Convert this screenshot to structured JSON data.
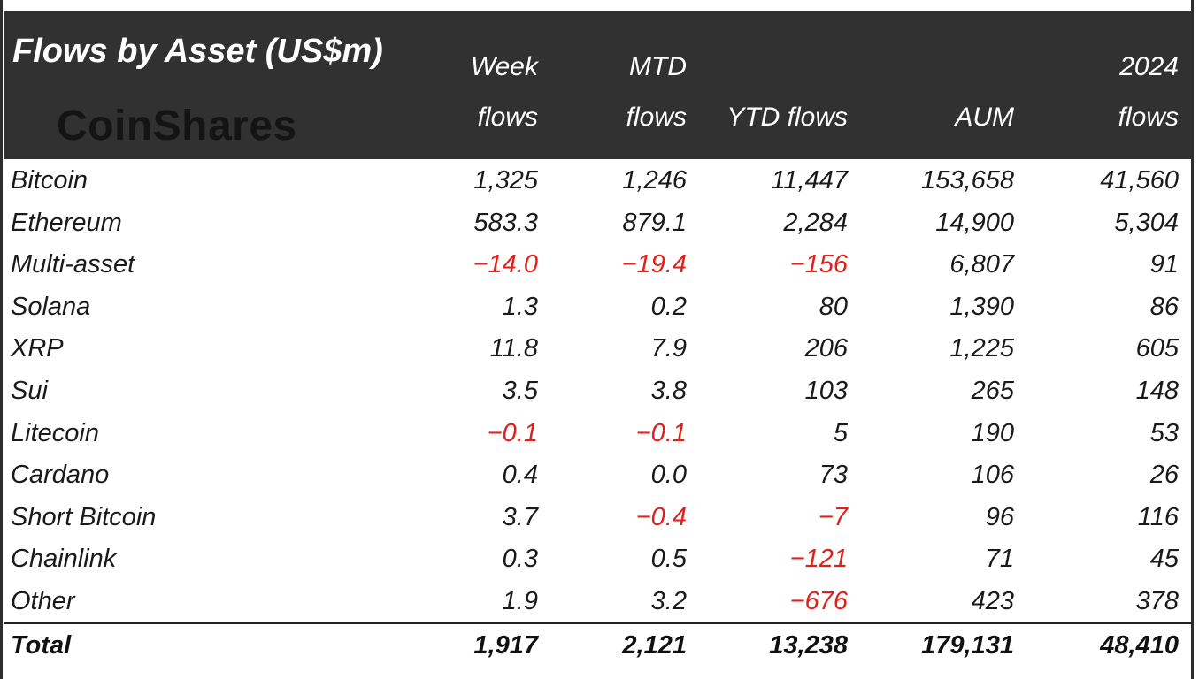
{
  "title": "Flows by Asset (US$m)",
  "logo": "CoinShares",
  "chart_data": {
    "type": "table",
    "title": "Flows by Asset (US$m)",
    "columns": [
      {
        "key": "week",
        "line1": "Week",
        "line2": "flows"
      },
      {
        "key": "mtd",
        "line1": "MTD",
        "line2": "flows"
      },
      {
        "key": "ytd",
        "line1": "",
        "line2": "YTD flows"
      },
      {
        "key": "aum",
        "line1": "",
        "line2": "AUM"
      },
      {
        "key": "y2024",
        "line1": "2024",
        "line2": "flows"
      }
    ],
    "rows": [
      {
        "asset": "Bitcoin",
        "week": "1,325",
        "mtd": "1,246",
        "ytd": "11,447",
        "aum": "153,658",
        "y2024": "41,560"
      },
      {
        "asset": "Ethereum",
        "week": "583.3",
        "mtd": "879.1",
        "ytd": "2,284",
        "aum": "14,900",
        "y2024": "5,304"
      },
      {
        "asset": "Multi-asset",
        "week": "-14.0",
        "mtd": "-19.4",
        "ytd": "-156",
        "aum": "6,807",
        "y2024": "91"
      },
      {
        "asset": "Solana",
        "week": "1.3",
        "mtd": "0.2",
        "ytd": "80",
        "aum": "1,390",
        "y2024": "86"
      },
      {
        "asset": "XRP",
        "week": "11.8",
        "mtd": "7.9",
        "ytd": "206",
        "aum": "1,225",
        "y2024": "605"
      },
      {
        "asset": "Sui",
        "week": "3.5",
        "mtd": "3.8",
        "ytd": "103",
        "aum": "265",
        "y2024": "148"
      },
      {
        "asset": "Litecoin",
        "week": "-0.1",
        "mtd": "-0.1",
        "ytd": "5",
        "aum": "190",
        "y2024": "53"
      },
      {
        "asset": "Cardano",
        "week": "0.4",
        "mtd": "0.0",
        "ytd": "73",
        "aum": "106",
        "y2024": "26"
      },
      {
        "asset": "Short Bitcoin",
        "week": "3.7",
        "mtd": "-0.4",
        "ytd": "-7",
        "aum": "96",
        "y2024": "116"
      },
      {
        "asset": "Chainlink",
        "week": "0.3",
        "mtd": "0.5",
        "ytd": "-121",
        "aum": "71",
        "y2024": "45"
      },
      {
        "asset": "Other",
        "week": "1.9",
        "mtd": "3.2",
        "ytd": "-676",
        "aum": "423",
        "y2024": "378"
      }
    ],
    "total": {
      "asset": "Total",
      "week": "1,917",
      "mtd": "2,121",
      "ytd": "13,238",
      "aum": "179,131",
      "y2024": "48,410"
    },
    "colors": {
      "header_bg": "#313131",
      "header_text": "#ffffff",
      "negative": "#e0201b",
      "text": "#1a1a1a"
    }
  }
}
